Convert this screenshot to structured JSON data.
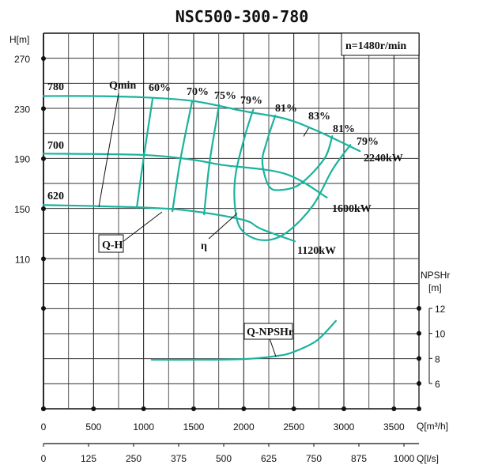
{
  "chart_data": {
    "type": "line",
    "title": "NSC500-300-780",
    "speed_label": "n=1480r/min",
    "xlabel": "Q[m³/h]",
    "x2label": "Q[l/s]",
    "ylabel": "H[m]",
    "y2label": "NPSHr",
    "y2unit": "[m]",
    "xlim": [
      0,
      3750
    ],
    "grid": true,
    "curve_color": "#1ab39c",
    "q_ticks": [
      "0",
      "500",
      "1000",
      "1500",
      "2000",
      "2500",
      "3000",
      "3500"
    ],
    "qls_ticks": [
      "0",
      "125",
      "250",
      "375",
      "500",
      "625",
      "750",
      "875",
      "1000"
    ],
    "h_ticks": [
      "270",
      "230",
      "190",
      "150",
      "110"
    ],
    "npsh_ticks": [
      "12",
      "10",
      "8",
      "6"
    ],
    "head_curves": [
      {
        "name": "780",
        "points": [
          [
            0,
            240
          ],
          [
            500,
            240
          ],
          [
            1000,
            239
          ],
          [
            1500,
            236
          ],
          [
            2000,
            228
          ],
          [
            2410,
            222
          ],
          [
            2725,
            212.5
          ],
          [
            3160,
            196
          ]
        ]
      },
      {
        "name": "700",
        "points": [
          [
            0,
            194
          ],
          [
            1000,
            193
          ],
          [
            1500,
            189
          ],
          [
            1780,
            185
          ],
          [
            2410,
            178
          ],
          [
            2830,
            159
          ]
        ]
      },
      {
        "name": "620",
        "points": [
          [
            0,
            153
          ],
          [
            1000,
            151
          ],
          [
            1500,
            148
          ],
          [
            2000,
            141
          ],
          [
            2170,
            134
          ],
          [
            2510,
            124
          ]
        ]
      }
    ],
    "efficiency_curves": [
      {
        "name": "60%",
        "points": [
          [
            1090,
            238
          ],
          [
            1003,
            192
          ],
          [
            932,
            151
          ]
        ]
      },
      {
        "name": "70%",
        "points": [
          [
            1485,
            236
          ],
          [
            1367,
            189
          ],
          [
            1288,
            148
          ]
        ]
      },
      {
        "name": "75%",
        "points": [
          [
            1754,
            233
          ],
          [
            1659,
            187
          ],
          [
            1604,
            145.5
          ]
        ]
      },
      {
        "name": "79%",
        "points": [
          [
            2094,
            229
          ],
          [
            2015,
            209
          ],
          [
            1920,
            178
          ],
          [
            1912,
            152
          ],
          [
            1975,
            133.5
          ],
          [
            2173,
            125
          ],
          [
            2410,
            130
          ],
          [
            2686,
            152
          ],
          [
            2884,
            181
          ],
          [
            3065,
            201
          ]
        ]
      },
      {
        "name": "81%",
        "points": [
          [
            2315,
            224.5
          ],
          [
            2228,
            203
          ],
          [
            2186,
            187
          ],
          [
            2252,
            168
          ],
          [
            2370,
            165
          ],
          [
            2568,
            170
          ],
          [
            2805,
            190
          ],
          [
            2884,
            208
          ]
        ]
      },
      {
        "name": "83%",
        "points": [
          [
            2600,
            208
          ],
          [
            2647,
            214.4
          ]
        ]
      }
    ],
    "npsh_curve": {
      "name": "Q-NPSHr",
      "points": [
        [
          1080,
          7.9
        ],
        [
          1500,
          7.9
        ],
        [
          2000,
          7.95
        ],
        [
          2330,
          8.2
        ],
        [
          2490,
          8.5
        ],
        [
          2725,
          9.4
        ],
        [
          2920,
          11.0
        ]
      ]
    },
    "annotations": {
      "d780": "780",
      "d700": "700",
      "d620": "620",
      "qmin": "Qmin",
      "e60": "60%",
      "e70": "70%",
      "e75": "75%",
      "e79a": "79%",
      "e81a": "81%",
      "e83": "83%",
      "e81b": "81%",
      "e79b": "79%",
      "p2240": "2240kW",
      "p1600": "1600kW",
      "p1120": "1120kW",
      "qh": "Q-H",
      "eta": "η",
      "qnpsh": "Q-NPSHr"
    }
  }
}
